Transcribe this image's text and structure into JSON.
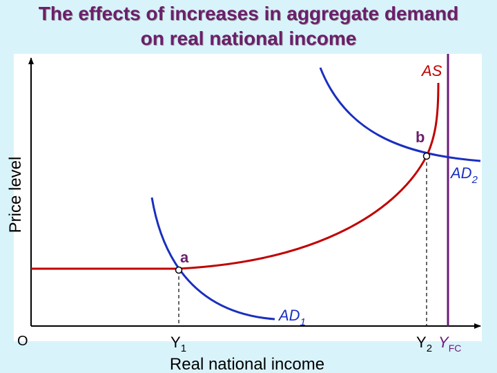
{
  "title": {
    "line1": "The effects of increases in aggregate demand",
    "line2": "on real national income"
  },
  "axes": {
    "y_label": "Price level",
    "x_label": "Real national income",
    "origin": "O"
  },
  "curves": {
    "as": "AS",
    "ad1": {
      "main": "AD",
      "sub": "1"
    },
    "ad2": {
      "main": "AD",
      "sub": "2"
    }
  },
  "points": {
    "a": "a",
    "b": "b"
  },
  "ticks": {
    "y1": {
      "main": "Y",
      "sub": "1"
    },
    "y2": {
      "main": "Y",
      "sub": "2"
    },
    "yfc": {
      "main": "Y",
      "sub": "FC"
    }
  },
  "colors": {
    "background": "#d9f3fb",
    "title": "#6b1f6b",
    "as_curve": "#c00000",
    "ad_curve": "#1a2fbf",
    "yfc_line": "#6b1a7a",
    "point_label": "#6b1f6b"
  }
}
